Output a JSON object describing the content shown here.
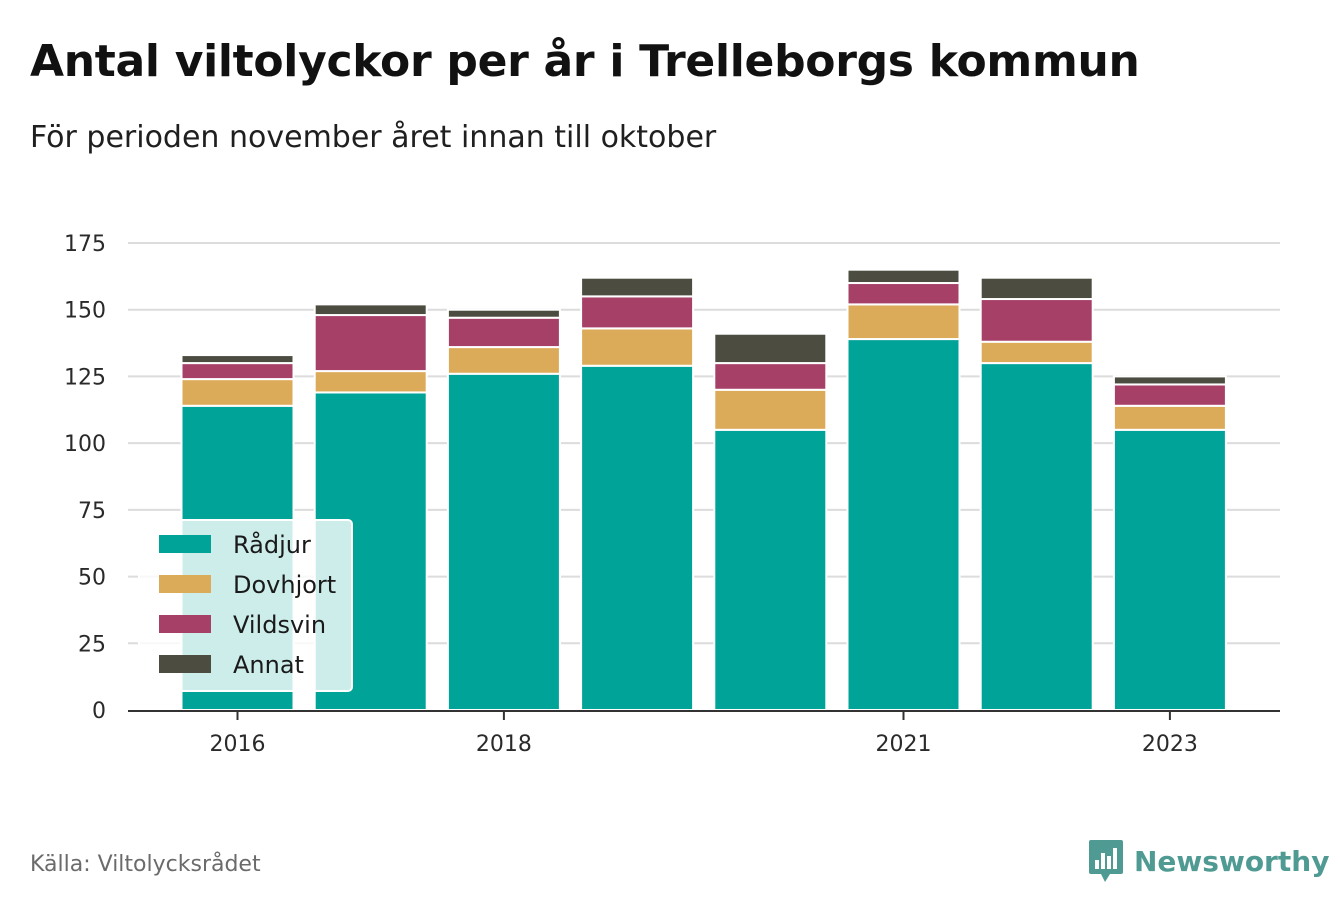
{
  "header": {
    "title": "Antal viltolyckor per år i Trelleborgs kommun",
    "subtitle": "För perioden november året innan till oktober"
  },
  "footer": {
    "source": "Källa: Viltolycksrådet",
    "brand": "Newsworthy",
    "brand_icon": "bar-chart-speech-bubble-icon",
    "brand_color": "#4f9a92"
  },
  "chart_data": {
    "type": "bar",
    "stacked": true,
    "categories": [
      "2016",
      "2017",
      "2018",
      "2019",
      "2020",
      "2021",
      "2022",
      "2023"
    ],
    "x_tick_labels": [
      "2016",
      "2018",
      "2021",
      "2023"
    ],
    "y_ticks": [
      0,
      25,
      50,
      75,
      100,
      125,
      150,
      175
    ],
    "ylim": [
      0,
      175
    ],
    "grid": true,
    "legend_position": "bottom-left",
    "series": [
      {
        "name": "Rådjur",
        "color": "#00a398",
        "values": [
          114,
          119,
          126,
          129,
          105,
          139,
          130,
          105
        ]
      },
      {
        "name": "Dovhjort",
        "color": "#dcab5a",
        "values": [
          10,
          8,
          10,
          14,
          15,
          13,
          8,
          9
        ]
      },
      {
        "name": "Vildsvin",
        "color": "#a64067",
        "values": [
          6,
          21,
          11,
          12,
          10,
          8,
          16,
          8
        ]
      },
      {
        "name": "Annat",
        "color": "#4c4c40",
        "values": [
          3,
          4,
          3,
          7,
          11,
          5,
          8,
          3
        ]
      }
    ]
  }
}
